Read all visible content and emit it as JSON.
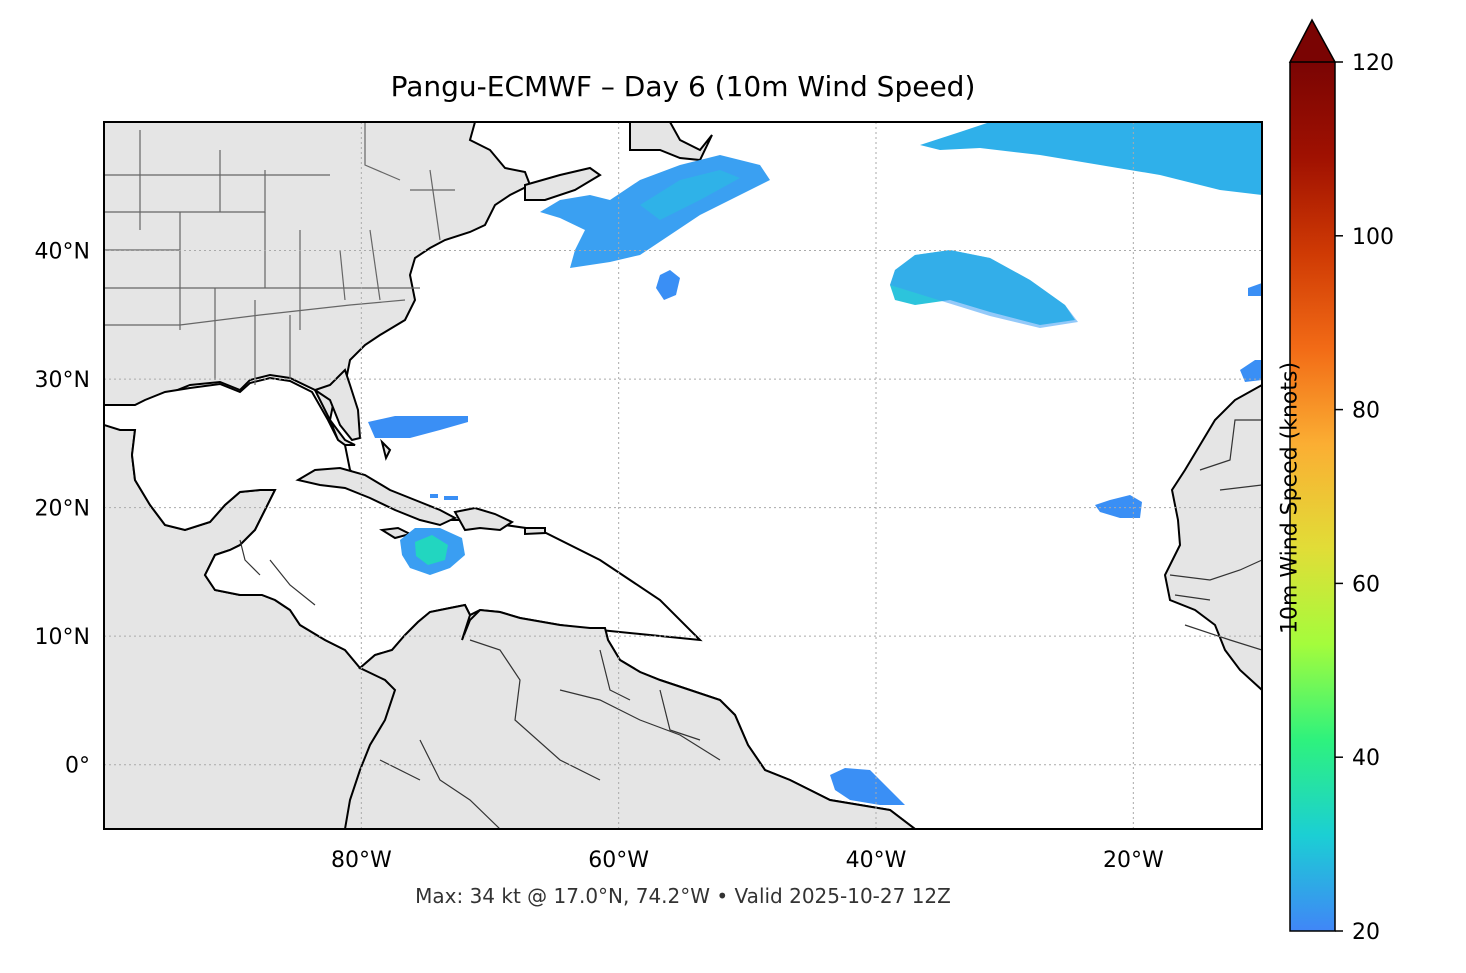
{
  "title": "Pangu-ECMWF – Day 6 (10m Wind Speed)",
  "footer": "Max: 34 kt @ 17.0°N, 74.2°W • Valid 2025-10-27 12Z",
  "map": {
    "lon_range": [
      -100,
      -10
    ],
    "lat_range": [
      -5,
      50
    ],
    "lon_ticks": [
      {
        "value": -80,
        "label": "80°W"
      },
      {
        "value": -60,
        "label": "60°W"
      },
      {
        "value": -40,
        "label": "40°W"
      },
      {
        "value": -20,
        "label": "20°W"
      }
    ],
    "lat_ticks": [
      {
        "value": 40,
        "label": "40°N"
      },
      {
        "value": 30,
        "label": "30°N"
      },
      {
        "value": 20,
        "label": "20°N"
      },
      {
        "value": 10,
        "label": "10°N"
      },
      {
        "value": 0,
        "label": "0°"
      }
    ],
    "land_color": "#e5e5e5",
    "coast_color": "#000000",
    "border_color": "#666666",
    "gridlines": true
  },
  "colorbar": {
    "label": "10m Wind Speed (knots)",
    "range": [
      20,
      120
    ],
    "extend": "max",
    "ticks": [
      {
        "value": 20,
        "label": "20"
      },
      {
        "value": 40,
        "label": "40"
      },
      {
        "value": 60,
        "label": "60"
      },
      {
        "value": 80,
        "label": "80"
      },
      {
        "value": 100,
        "label": "100"
      },
      {
        "value": 120,
        "label": "120"
      }
    ],
    "colors": [
      "#4086f7",
      "#1bcfd4",
      "#2ef27d",
      "#a4fc3c",
      "#e1dd37",
      "#fbae33",
      "#f26b16",
      "#cf3a04",
      "#a01101",
      "#7a0403"
    ]
  },
  "wind_areas": [
    {
      "name": "NW Atlantic off Canada",
      "color": "#3aa0f2"
    },
    {
      "name": "Central Atlantic 37N",
      "color": "#2cbfe0"
    },
    {
      "name": "NE Atlantic 48N",
      "color": "#2fb0ea"
    },
    {
      "name": "Caribbean low near Jamaica",
      "color": "#22d6c0"
    }
  ],
  "max_wind": {
    "speed_kt": 34,
    "lat": 17.0,
    "lon": -74.2
  }
}
